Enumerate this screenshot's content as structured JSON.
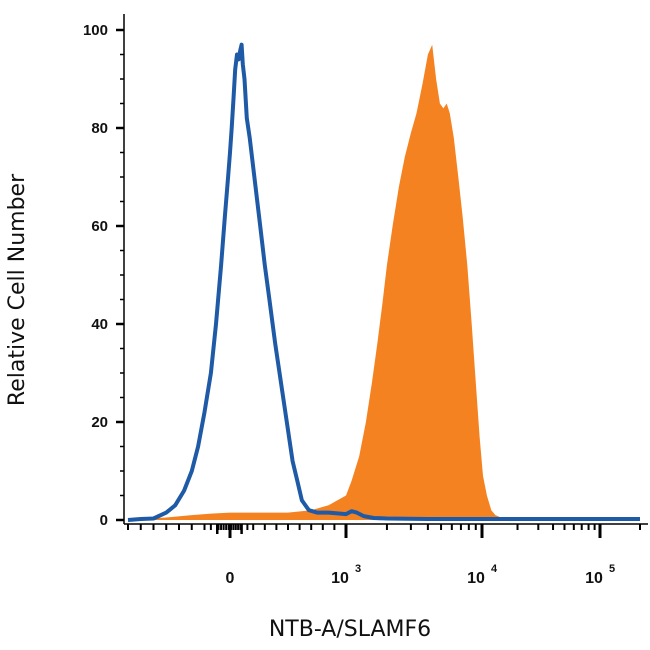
{
  "chart_data": {
    "type": "area",
    "title": "",
    "xlabel": "NTB-A/SLAMF6",
    "ylabel": "Relative Cell Number",
    "x_scale": "biexponential",
    "xlim": [
      -800,
      200000
    ],
    "ylim": [
      0,
      100
    ],
    "y_ticks": [
      "0",
      "20",
      "40",
      "60",
      "80",
      "100"
    ],
    "x_ticks": [
      {
        "value": 0,
        "base": "0",
        "exp": ""
      },
      {
        "value": 1000,
        "base": "10",
        "exp": "3"
      },
      {
        "value": 10000,
        "base": "10",
        "exp": "4"
      },
      {
        "value": 100000,
        "base": "10",
        "exp": "5"
      }
    ],
    "grid": false,
    "legend": "none",
    "series": [
      {
        "style": "filled",
        "color": "#f58220",
        "points": [
          [
            -800,
            0
          ],
          [
            -500,
            0.5
          ],
          [
            -300,
            1
          ],
          [
            -150,
            1.3
          ],
          [
            0,
            1.5
          ],
          [
            150,
            1.5
          ],
          [
            300,
            1.5
          ],
          [
            500,
            1.5
          ],
          [
            700,
            2
          ],
          [
            850,
            3
          ],
          [
            1000,
            5
          ],
          [
            1100,
            8
          ],
          [
            1250,
            13
          ],
          [
            1400,
            20
          ],
          [
            1550,
            28
          ],
          [
            1700,
            36
          ],
          [
            1850,
            44
          ],
          [
            2000,
            52
          ],
          [
            2200,
            60
          ],
          [
            2450,
            68
          ],
          [
            2700,
            74
          ],
          [
            3000,
            79
          ],
          [
            3300,
            83
          ],
          [
            3650,
            89
          ],
          [
            4000,
            95
          ],
          [
            4300,
            97
          ],
          [
            4600,
            90
          ],
          [
            4900,
            85
          ],
          [
            5200,
            84
          ],
          [
            5500,
            85
          ],
          [
            5800,
            83
          ],
          [
            6200,
            78
          ],
          [
            6700,
            70
          ],
          [
            7200,
            62
          ],
          [
            7800,
            52
          ],
          [
            8400,
            40
          ],
          [
            9000,
            28
          ],
          [
            9600,
            17
          ],
          [
            10200,
            9
          ],
          [
            11000,
            5
          ],
          [
            12000,
            2
          ],
          [
            13000,
            1
          ],
          [
            14500,
            0.5
          ],
          [
            16000,
            0
          ]
        ]
      },
      {
        "style": "outline",
        "color": "#1f5aa6",
        "points": [
          [
            -800,
            0
          ],
          [
            -700,
            0.2
          ],
          [
            -600,
            0.3
          ],
          [
            -500,
            1.5
          ],
          [
            -430,
            3
          ],
          [
            -360,
            6
          ],
          [
            -300,
            10
          ],
          [
            -250,
            15
          ],
          [
            -200,
            22
          ],
          [
            -150,
            30
          ],
          [
            -110,
            40
          ],
          [
            -70,
            52
          ],
          [
            -40,
            62
          ],
          [
            -15,
            70
          ],
          [
            0,
            75
          ],
          [
            15,
            80
          ],
          [
            30,
            86
          ],
          [
            45,
            92
          ],
          [
            60,
            95
          ],
          [
            75,
            94
          ],
          [
            90,
            96
          ],
          [
            100,
            97
          ],
          [
            110,
            93
          ],
          [
            125,
            90
          ],
          [
            145,
            82
          ],
          [
            170,
            78
          ],
          [
            200,
            72
          ],
          [
            230,
            66
          ],
          [
            260,
            60
          ],
          [
            300,
            52
          ],
          [
            340,
            45
          ],
          [
            390,
            36
          ],
          [
            440,
            28
          ],
          [
            490,
            20
          ],
          [
            540,
            12
          ],
          [
            580,
            8
          ],
          [
            620,
            4
          ],
          [
            680,
            2
          ],
          [
            750,
            1.5
          ],
          [
            850,
            1.5
          ],
          [
            1000,
            1.2
          ],
          [
            1100,
            1.8
          ],
          [
            1200,
            1.5
          ],
          [
            1350,
            0.8
          ],
          [
            1600,
            0.4
          ],
          [
            2000,
            0.3
          ],
          [
            4000,
            0.2
          ],
          [
            10000,
            0.2
          ],
          [
            50000,
            0.2
          ],
          [
            200000,
            0.2
          ]
        ]
      }
    ]
  }
}
